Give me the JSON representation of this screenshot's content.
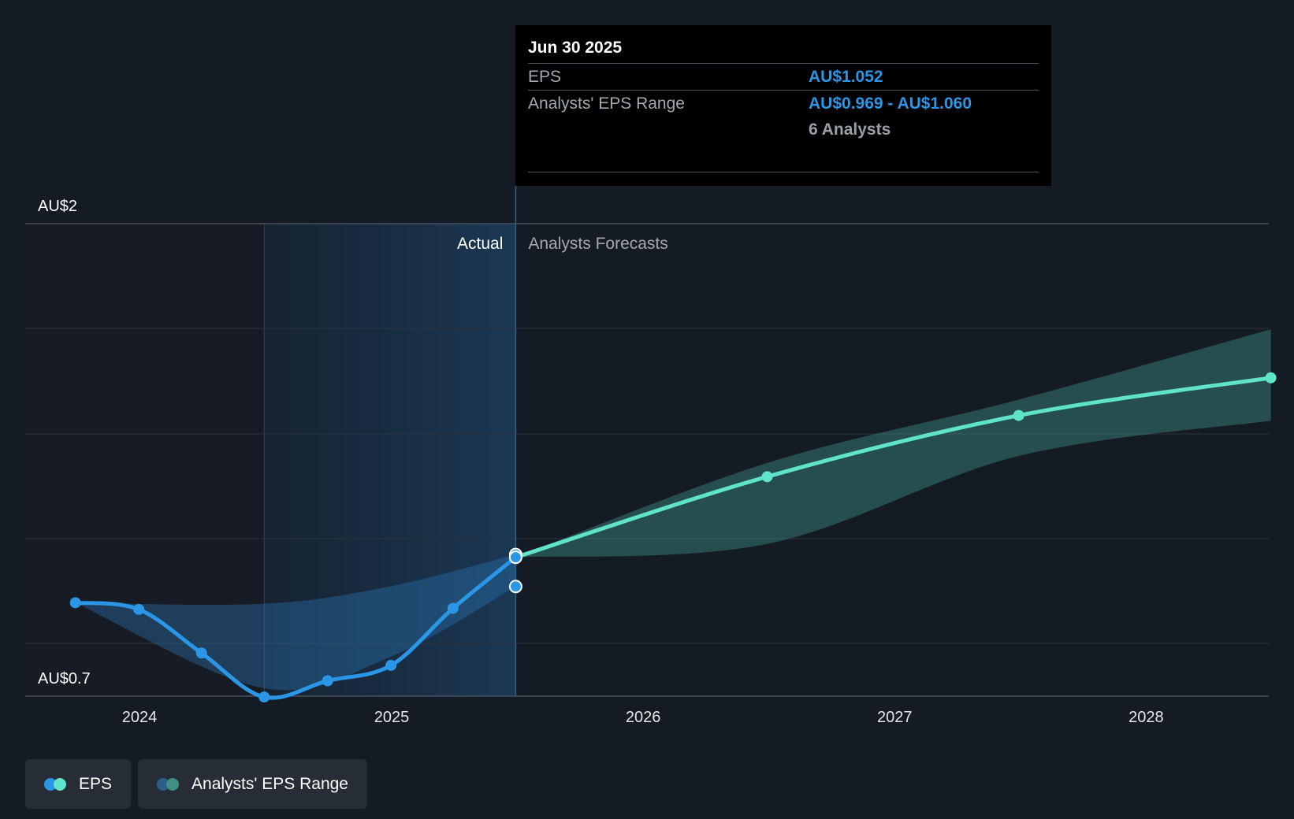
{
  "chart_data": {
    "type": "line",
    "title": "",
    "xlabel": "",
    "ylabel": "",
    "y_axis_labels": [
      "AU$2",
      "AU$0.7"
    ],
    "ylim": [
      0.7,
      2.0
    ],
    "xlim": [
      "2023-07-01",
      "2028-06-30"
    ],
    "x_ticks": [
      "2024",
      "2025",
      "2026",
      "2027",
      "2028"
    ],
    "grid": true,
    "regions": {
      "actual_label": "Actual",
      "forecast_label": "Analysts Forecasts",
      "divider_date": "2025-06-30"
    },
    "series": [
      {
        "name": "EPS",
        "color": "#2b96e6",
        "points": [
          {
            "x": "2023-09-30",
            "y": 0.923
          },
          {
            "x": "2023-12-31",
            "y": 0.904
          },
          {
            "x": "2024-03-31",
            "y": 0.78
          },
          {
            "x": "2024-06-30",
            "y": 0.655
          },
          {
            "x": "2024-09-30",
            "y": 0.701
          },
          {
            "x": "2024-12-31",
            "y": 0.745
          },
          {
            "x": "2025-03-31",
            "y": 0.907
          },
          {
            "x": "2025-06-30",
            "y": 1.052
          }
        ]
      },
      {
        "name": "EPS Forecast",
        "color": "#5fe3c9",
        "points": [
          {
            "x": "2025-06-30",
            "y": 1.052
          },
          {
            "x": "2026-06-30",
            "y": 1.281
          },
          {
            "x": "2027-06-30",
            "y": 1.455
          },
          {
            "x": "2028-06-30",
            "y": 1.562
          }
        ]
      },
      {
        "name": "Analysts' EPS Range",
        "color": "#2b96e6",
        "type": "band",
        "points": [
          {
            "x": "2023-09-30",
            "low": 0.923,
            "high": 0.923
          },
          {
            "x": "2024-06-30",
            "low": 0.68,
            "high": 0.92
          },
          {
            "x": "2024-12-31",
            "low": 0.77,
            "high": 0.97
          },
          {
            "x": "2025-06-30",
            "low": 0.969,
            "high": 1.06
          }
        ]
      },
      {
        "name": "Analysts' EPS Range Forecast",
        "color": "#5fe3c9",
        "type": "band",
        "points": [
          {
            "x": "2025-06-30",
            "low": 1.052,
            "high": 1.052
          },
          {
            "x": "2026-06-30",
            "low": 1.09,
            "high": 1.32
          },
          {
            "x": "2027-06-30",
            "low": 1.34,
            "high": 1.5
          },
          {
            "x": "2028-06-30",
            "low": 1.44,
            "high": 1.7
          }
        ]
      }
    ],
    "highlight_points": [
      1.06,
      1.052,
      0.969
    ],
    "legend": {
      "placement": "bottom-left",
      "entries": [
        "EPS",
        "Analysts' EPS Range"
      ]
    }
  },
  "tooltip": {
    "date": "Jun 30 2025",
    "rows": [
      {
        "key": "EPS",
        "value": "AU$1.052"
      },
      {
        "key": "Analysts' EPS Range",
        "value": "AU$0.969 - AU$1.060"
      }
    ],
    "analysts_count": "6 Analysts"
  },
  "legend": {
    "items": [
      {
        "label": "EPS",
        "colors": [
          "#2b96e6",
          "#5fe3c9"
        ]
      },
      {
        "label": "Analysts' EPS Range",
        "colors": [
          "#2a5f8a",
          "#3f8f84"
        ]
      }
    ]
  }
}
